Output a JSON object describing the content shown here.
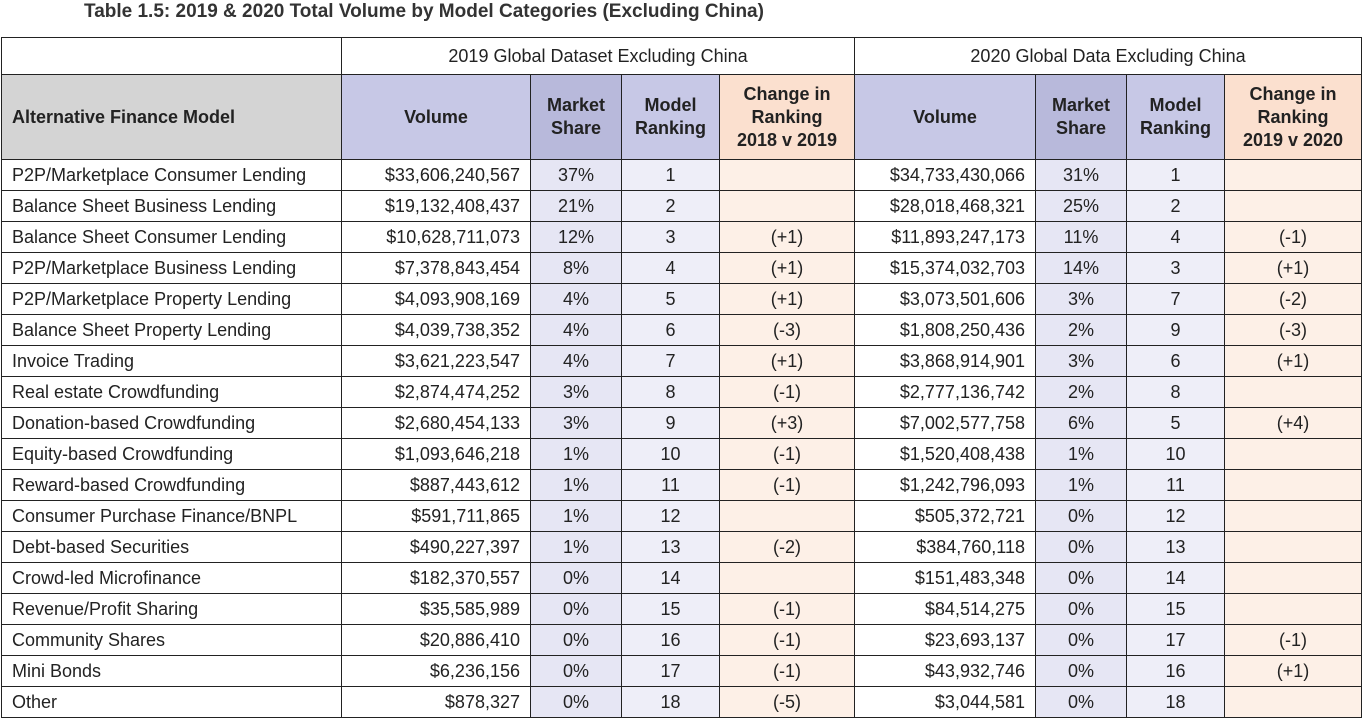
{
  "title": "Table 1.5: 2019 & 2020 Total Volume by Model Categories (Excluding China)",
  "groups": {
    "g2019": "2019 Global Dataset Excluding China",
    "g2020": "2020 Global Data Excluding China"
  },
  "headers": {
    "model": "Alternative Finance Model",
    "volume_2019": "Volume",
    "share_2019_l1": "Market",
    "share_2019_l2": "Share",
    "rank_2019_l1": "Model",
    "rank_2019_l2": "Ranking",
    "change_2019_l1": "Change in",
    "change_2019_l2": "Ranking",
    "change_2019_l3": "2018 v 2019",
    "volume_2020": "Volume",
    "share_2020_l1": "Market",
    "share_2020_l2": "Share",
    "rank_2020_l1": "Model",
    "rank_2020_l2": "Ranking",
    "change_2020_l1": "Change in",
    "change_2020_l2": "Ranking",
    "change_2020_l3": "2019 v 2020"
  },
  "rows": [
    {
      "model": "P2P/Marketplace Consumer Lending",
      "v19": "$33,606,240,567",
      "s19": "37%",
      "r19": "1",
      "c19": "",
      "v20": "$34,733,430,066",
      "s20": "31%",
      "r20": "1",
      "c20": ""
    },
    {
      "model": "Balance Sheet Business Lending",
      "v19": "$19,132,408,437",
      "s19": "21%",
      "r19": "2",
      "c19": "",
      "v20": "$28,018,468,321",
      "s20": "25%",
      "r20": "2",
      "c20": ""
    },
    {
      "model": "Balance Sheet Consumer Lending",
      "v19": "$10,628,711,073",
      "s19": "12%",
      "r19": "3",
      "c19": "(+1)",
      "v20": "$11,893,247,173",
      "s20": "11%",
      "r20": "4",
      "c20": "(-1)"
    },
    {
      "model": "P2P/Marketplace Business Lending",
      "v19": "$7,378,843,454",
      "s19": "8%",
      "r19": "4",
      "c19": "(+1)",
      "v20": "$15,374,032,703",
      "s20": "14%",
      "r20": "3",
      "c20": "(+1)"
    },
    {
      "model": "P2P/Marketplace Property Lending",
      "v19": "$4,093,908,169",
      "s19": "4%",
      "r19": "5",
      "c19": "(+1)",
      "v20": "$3,073,501,606",
      "s20": "3%",
      "r20": "7",
      "c20": "(-2)"
    },
    {
      "model": "Balance Sheet Property Lending",
      "v19": "$4,039,738,352",
      "s19": "4%",
      "r19": "6",
      "c19": "(-3)",
      "v20": "$1,808,250,436",
      "s20": "2%",
      "r20": "9",
      "c20": "(-3)"
    },
    {
      "model": "Invoice Trading",
      "v19": "$3,621,223,547",
      "s19": "4%",
      "r19": "7",
      "c19": "(+1)",
      "v20": "$3,868,914,901",
      "s20": "3%",
      "r20": "6",
      "c20": "(+1)"
    },
    {
      "model": "Real estate Crowdfunding",
      "v19": "$2,874,474,252",
      "s19": "3%",
      "r19": "8",
      "c19": "(-1)",
      "v20": "$2,777,136,742",
      "s20": "2%",
      "r20": "8",
      "c20": ""
    },
    {
      "model": "Donation-based Crowdfunding",
      "v19": "$2,680,454,133",
      "s19": "3%",
      "r19": "9",
      "c19": "(+3)",
      "v20": "$7,002,577,758",
      "s20": "6%",
      "r20": "5",
      "c20": "(+4)"
    },
    {
      "model": "Equity-based Crowdfunding",
      "v19": "$1,093,646,218",
      "s19": "1%",
      "r19": "10",
      "c19": "(-1)",
      "v20": "$1,520,408,438",
      "s20": "1%",
      "r20": "10",
      "c20": ""
    },
    {
      "model": "Reward-based Crowdfunding",
      "v19": "$887,443,612",
      "s19": "1%",
      "r19": "11",
      "c19": "(-1)",
      "v20": "$1,242,796,093",
      "s20": "1%",
      "r20": "11",
      "c20": ""
    },
    {
      "model": "Consumer Purchase Finance/BNPL",
      "v19": "$591,711,865",
      "s19": "1%",
      "r19": "12",
      "c19": "",
      "v20": "$505,372,721",
      "s20": "0%",
      "r20": "12",
      "c20": ""
    },
    {
      "model": "Debt-based Securities",
      "v19": "$490,227,397",
      "s19": "1%",
      "r19": "13",
      "c19": "(-2)",
      "v20": "$384,760,118",
      "s20": "0%",
      "r20": "13",
      "c20": ""
    },
    {
      "model": "Crowd-led Microfinance",
      "v19": "$182,370,557",
      "s19": "0%",
      "r19": "14",
      "c19": "",
      "v20": "$151,483,348",
      "s20": "0%",
      "r20": "14",
      "c20": ""
    },
    {
      "model": "Revenue/Profit Sharing",
      "v19": "$35,585,989",
      "s19": "0%",
      "r19": "15",
      "c19": "(-1)",
      "v20": "$84,514,275",
      "s20": "0%",
      "r20": "15",
      "c20": ""
    },
    {
      "model": "Community Shares",
      "v19": "$20,886,410",
      "s19": "0%",
      "r19": "16",
      "c19": "(-1)",
      "v20": "$23,693,137",
      "s20": "0%",
      "r20": "17",
      "c20": "(-1)"
    },
    {
      "model": "Mini Bonds",
      "v19": "$6,236,156",
      "s19": "0%",
      "r19": "17",
      "c19": "(-1)",
      "v20": "$43,932,746",
      "s20": "0%",
      "r20": "16",
      "c20": "(+1)"
    },
    {
      "model": "Other",
      "v19": "$878,327",
      "s19": "0%",
      "r19": "18",
      "c19": "(-5)",
      "v20": "$3,044,581",
      "s20": "0%",
      "r20": "18",
      "c20": ""
    }
  ]
}
